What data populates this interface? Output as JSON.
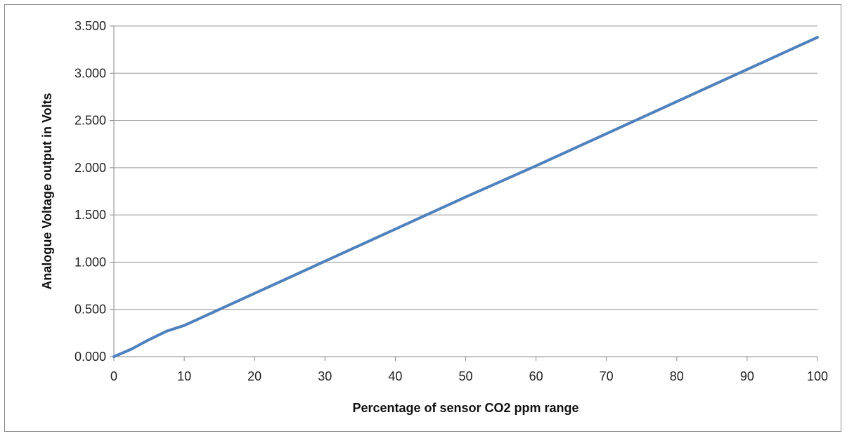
{
  "chart_data": {
    "type": "line",
    "title": "",
    "xlabel": "Percentage of sensor CO2 ppm range",
    "ylabel": "Analogue Voltage output in Volts",
    "xlim": [
      0,
      100
    ],
    "ylim": [
      0,
      3.5
    ],
    "grid": true,
    "legend": "none",
    "x_ticks": [
      "0",
      "10",
      "20",
      "30",
      "40",
      "50",
      "60",
      "70",
      "80",
      "90",
      "100"
    ],
    "y_ticks": [
      "0.000",
      "0.500",
      "1.000",
      "1.500",
      "2.000",
      "2.500",
      "3.000",
      "3.500"
    ],
    "series": [
      {
        "color": "#4f81bd",
        "x": [
          0,
          2.5,
          5,
          7.5,
          10,
          20,
          30,
          40,
          50,
          60,
          70,
          80,
          90,
          100
        ],
        "y": [
          0.0,
          0.08,
          0.18,
          0.27,
          0.33,
          0.67,
          1.01,
          1.35,
          1.69,
          2.02,
          2.36,
          2.7,
          3.04,
          3.38
        ]
      }
    ]
  }
}
